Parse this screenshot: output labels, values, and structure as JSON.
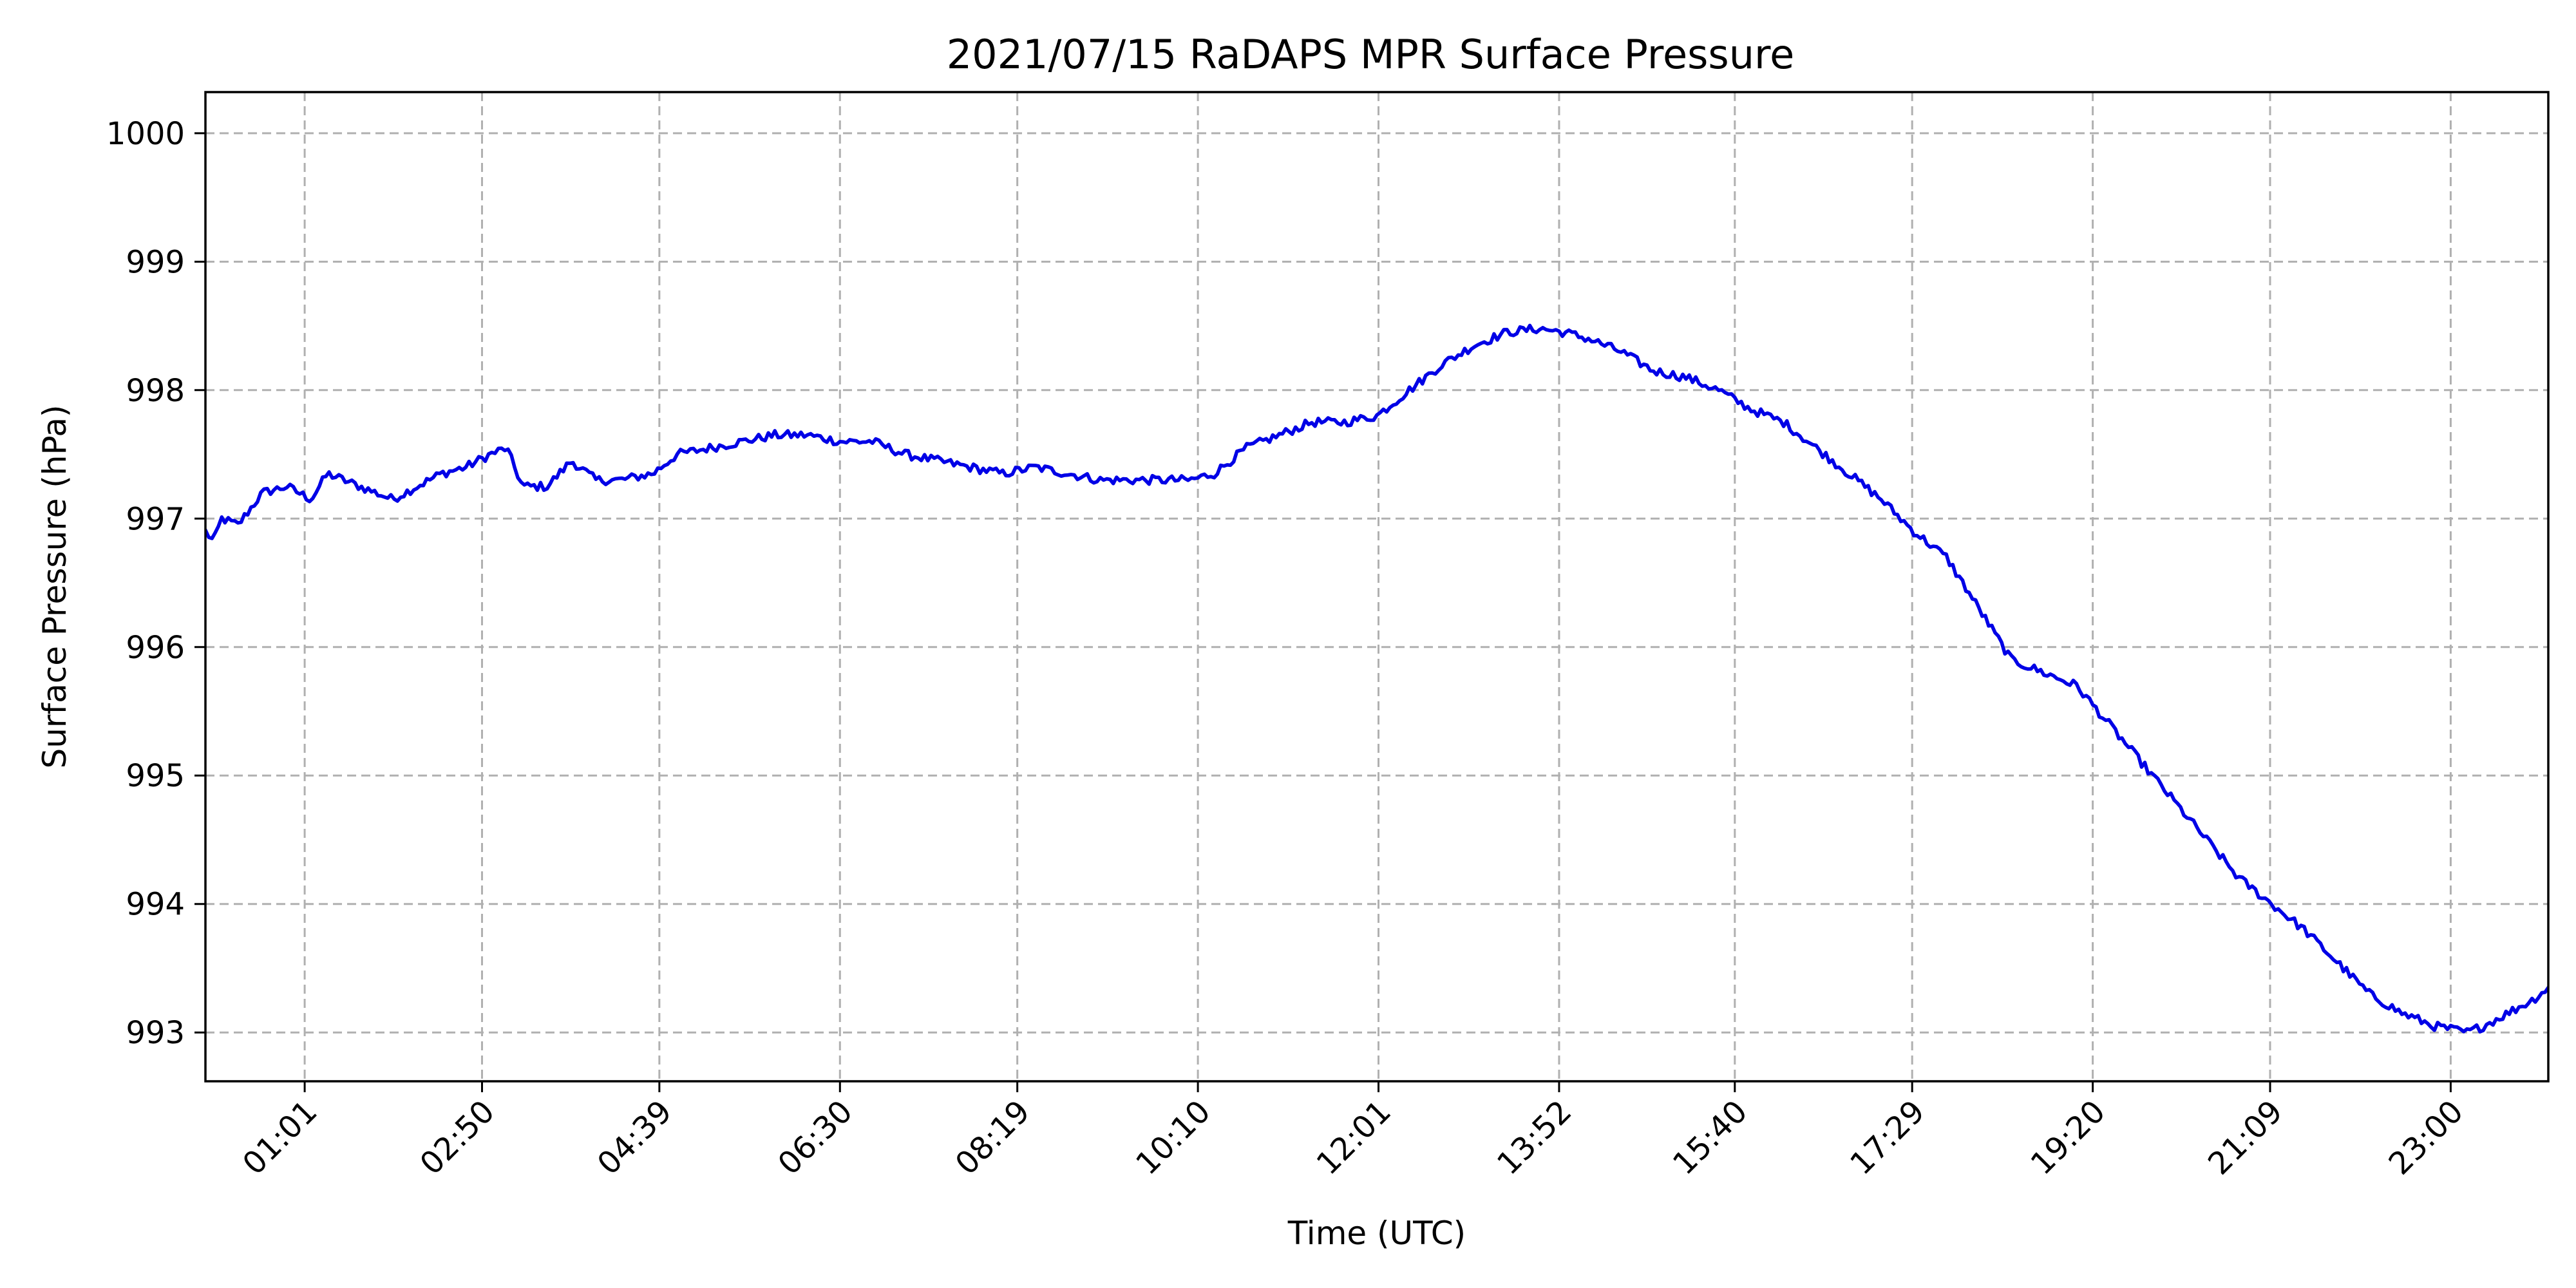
{
  "chart_data": {
    "type": "line",
    "title": "2021/07/15 RaDAPS MPR Surface Pressure",
    "xlabel": "Time (UTC)",
    "ylabel": "Surface Pressure (hPa)",
    "x_unit": "time of day (HH:MM, UTC)",
    "xlim": [
      "00:00",
      "24:00"
    ],
    "ylim": [
      992.62,
      1000.32
    ],
    "x_ticks": [
      "01:01",
      "02:50",
      "04:39",
      "06:30",
      "08:19",
      "10:10",
      "12:01",
      "13:52",
      "15:40",
      "17:29",
      "19:20",
      "21:09",
      "23:00"
    ],
    "y_ticks": [
      993,
      994,
      995,
      996,
      997,
      998,
      999,
      1000
    ],
    "grid": true,
    "line_color": "#0000e6",
    "series": [
      {
        "x": [
          "00:00",
          "00:05",
          "00:10",
          "00:20",
          "00:35",
          "00:50",
          "01:05",
          "01:15",
          "01:35",
          "01:55",
          "02:10",
          "02:25",
          "02:40",
          "02:55",
          "03:05",
          "03:15",
          "03:30",
          "03:45",
          "04:00",
          "04:15",
          "04:35",
          "04:50",
          "05:10",
          "05:30",
          "05:50",
          "06:10",
          "06:30",
          "06:50",
          "07:10",
          "07:30",
          "07:50",
          "08:10",
          "08:30",
          "08:50",
          "09:10",
          "09:30",
          "09:50",
          "10:05",
          "10:20",
          "10:40",
          "11:00",
          "11:20",
          "11:40",
          "12:00",
          "12:20",
          "12:40",
          "13:00",
          "13:20",
          "13:40",
          "13:55",
          "14:10",
          "14:30",
          "14:50",
          "15:10",
          "15:30",
          "15:50",
          "16:10",
          "16:30",
          "16:50",
          "17:10",
          "17:30",
          "17:50",
          "18:10",
          "18:30",
          "18:50",
          "19:10",
          "19:30",
          "19:50",
          "20:10",
          "20:30",
          "20:50",
          "21:10",
          "21:30",
          "21:50",
          "22:10",
          "22:30",
          "22:50",
          "23:10",
          "23:20",
          "23:35",
          "23:50",
          "24:00"
        ],
        "y": [
          996.9,
          996.82,
          997.0,
          996.95,
          997.2,
          997.25,
          997.15,
          997.35,
          997.25,
          997.15,
          997.25,
          997.35,
          997.4,
          997.5,
          997.55,
          997.25,
          997.25,
          997.45,
          997.3,
          997.3,
          997.35,
          997.5,
          997.55,
          997.6,
          997.65,
          997.65,
          997.6,
          997.6,
          997.5,
          997.45,
          997.4,
          997.35,
          997.4,
          997.35,
          997.3,
          997.3,
          997.3,
          997.3,
          997.35,
          997.55,
          997.65,
          997.75,
          997.75,
          997.8,
          998.0,
          998.2,
          998.35,
          998.45,
          998.48,
          998.45,
          998.4,
          998.3,
          998.15,
          998.1,
          998.0,
          997.85,
          997.75,
          997.55,
          997.35,
          997.15,
          996.9,
          996.7,
          996.3,
          995.9,
          995.8,
          995.7,
          995.4,
          995.1,
          994.8,
          994.5,
          994.2,
          994.0,
          993.8,
          993.55,
          993.3,
          993.15,
          993.05,
          993.0,
          993.05,
          993.15,
          993.25,
          993.35
        ]
      }
    ]
  }
}
